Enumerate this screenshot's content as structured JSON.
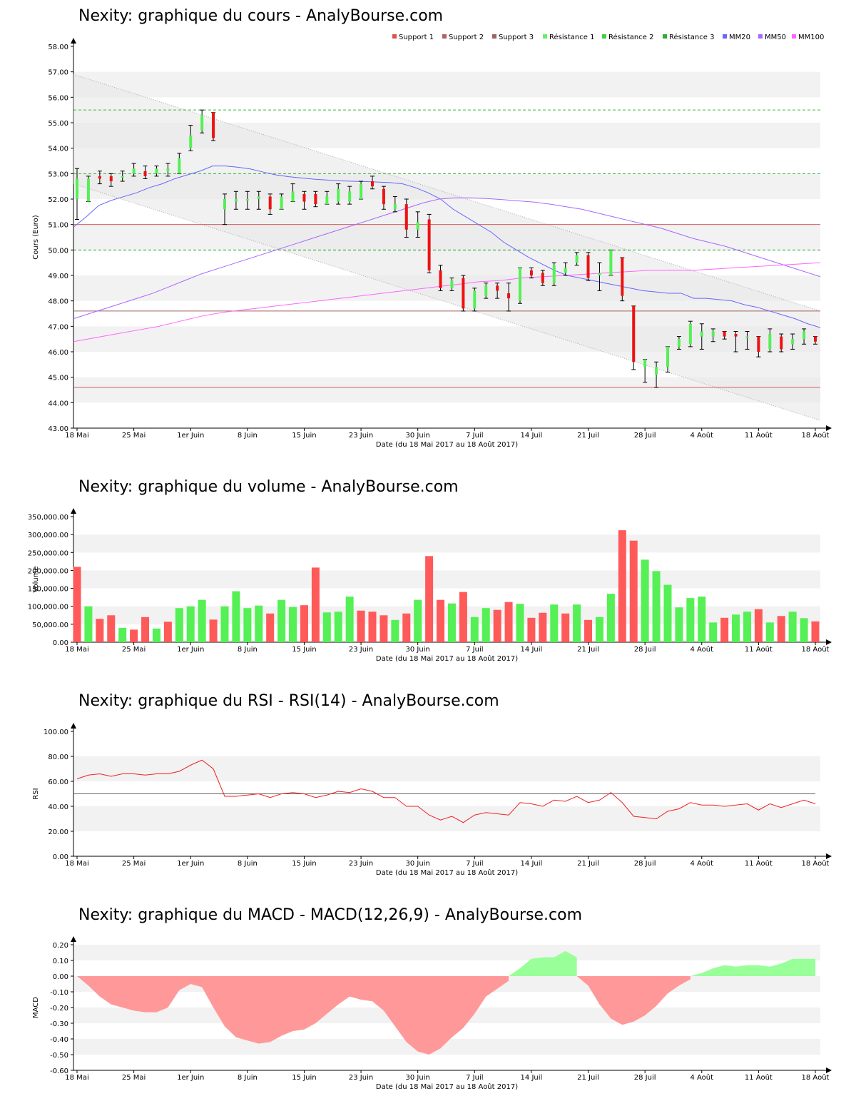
{
  "chart_data": [
    {
      "type": "candlestick",
      "title": "Nexity: graphique du cours - AnalyBourse.com",
      "xlabel": "Date (du 18 Mai 2017 au 18 Août 2017)",
      "ylabel": "Cours (Euro)",
      "ylim": [
        43,
        58
      ],
      "yticks": [
        "43.00",
        "44.00",
        "45.00",
        "46.00",
        "47.00",
        "48.00",
        "49.00",
        "50.00",
        "51.00",
        "52.00",
        "53.00",
        "54.00",
        "55.00",
        "56.00",
        "57.00",
        "58.00"
      ],
      "xticks": [
        {
          "i": 0,
          "label": "18 Mai"
        },
        {
          "i": 5,
          "label": "25 Mai"
        },
        {
          "i": 10,
          "label": "1er Juin"
        },
        {
          "i": 15,
          "label": "8 Juin"
        },
        {
          "i": 20,
          "label": "15 Juin"
        },
        {
          "i": 25,
          "label": "23 Juin"
        },
        {
          "i": 30,
          "label": "30 Juin"
        },
        {
          "i": 35,
          "label": "7 Juil"
        },
        {
          "i": 40,
          "label": "14 Juil"
        },
        {
          "i": 45,
          "label": "21 Juil"
        },
        {
          "i": 50,
          "label": "28 Juil"
        },
        {
          "i": 55,
          "label": "4 Août"
        },
        {
          "i": 60,
          "label": "11 Août"
        },
        {
          "i": 65,
          "label": "18 Août"
        }
      ],
      "legend": [
        "Support 1",
        "Support 2",
        "Support 3",
        "Résistance 1",
        "Résistance 2",
        "Résistance 3",
        "MM20",
        "MM50",
        "MM100"
      ],
      "legend_colors": [
        "#e05050",
        "#b06060",
        "#a06060",
        "#66ee66",
        "#44cc44",
        "#33aa33",
        "#6666ff",
        "#aa66ff",
        "#ff66ff"
      ],
      "legend_placement": "top-right",
      "levels": {
        "support_1": 44.6,
        "support_2": 47.6,
        "support_3": 51.0,
        "resistance_1": 55.5,
        "resistance_2": 53.0,
        "resistance_3": 50.0
      },
      "candles": [
        [
          52.0,
          52.8,
          53.2,
          51.2
        ],
        [
          51.9,
          52.8,
          52.9,
          51.9
        ],
        [
          52.9,
          52.8,
          53.1,
          52.6
        ],
        [
          52.9,
          52.7,
          53.0,
          52.5
        ],
        [
          52.9,
          52.9,
          53.1,
          52.7
        ],
        [
          53.0,
          53.2,
          53.4,
          52.9
        ],
        [
          53.1,
          52.9,
          53.3,
          52.8
        ],
        [
          53.0,
          53.2,
          53.3,
          52.9
        ],
        [
          53.1,
          53.2,
          53.4,
          52.9
        ],
        [
          53.0,
          53.6,
          53.8,
          53.0
        ],
        [
          54.0,
          54.5,
          54.9,
          53.9
        ],
        [
          54.7,
          55.3,
          55.5,
          54.6
        ],
        [
          55.4,
          54.4,
          55.4,
          54.3
        ],
        [
          51.6,
          52.0,
          52.2,
          51.0
        ],
        [
          51.9,
          52.0,
          52.3,
          51.6
        ],
        [
          52.0,
          52.0,
          52.3,
          51.6
        ],
        [
          52.0,
          52.1,
          52.3,
          51.6
        ],
        [
          52.1,
          51.6,
          52.2,
          51.4
        ],
        [
          51.6,
          52.1,
          52.2,
          51.6
        ],
        [
          51.9,
          52.3,
          52.6,
          51.9
        ],
        [
          52.2,
          51.9,
          52.3,
          51.6
        ],
        [
          52.2,
          51.8,
          52.3,
          51.7
        ],
        [
          51.8,
          52.1,
          52.3,
          51.8
        ],
        [
          51.9,
          52.4,
          52.6,
          51.8
        ],
        [
          51.9,
          52.3,
          52.5,
          51.8
        ],
        [
          52.0,
          52.6,
          52.7,
          52.0
        ],
        [
          52.7,
          52.5,
          52.9,
          52.4
        ],
        [
          52.4,
          51.8,
          52.5,
          51.6
        ],
        [
          51.6,
          51.8,
          52.1,
          51.5
        ],
        [
          51.8,
          50.8,
          52.0,
          50.5
        ],
        [
          50.8,
          51.1,
          51.5,
          50.5
        ],
        [
          51.2,
          49.2,
          51.4,
          49.1
        ],
        [
          49.2,
          48.5,
          49.4,
          48.4
        ],
        [
          48.5,
          48.8,
          48.9,
          48.4
        ],
        [
          48.9,
          47.7,
          49.0,
          47.6
        ],
        [
          47.7,
          48.4,
          48.5,
          47.6
        ],
        [
          48.2,
          48.6,
          48.7,
          48.1
        ],
        [
          48.6,
          48.4,
          48.7,
          48.1
        ],
        [
          48.3,
          48.1,
          48.7,
          47.6
        ],
        [
          48.0,
          49.3,
          49.3,
          47.9
        ],
        [
          49.2,
          49.0,
          49.3,
          48.9
        ],
        [
          49.1,
          48.7,
          49.2,
          48.6
        ],
        [
          48.7,
          49.4,
          49.5,
          48.6
        ],
        [
          49.1,
          49.3,
          49.5,
          49.0
        ],
        [
          49.5,
          49.8,
          49.9,
          49.4
        ],
        [
          49.8,
          48.9,
          49.9,
          48.8
        ],
        [
          49.0,
          49.1,
          49.5,
          48.4
        ],
        [
          49.0,
          50.0,
          50.0,
          49.0
        ],
        [
          49.7,
          48.2,
          49.7,
          48.0
        ],
        [
          47.8,
          45.6,
          47.8,
          45.3
        ],
        [
          45.4,
          45.7,
          45.7,
          44.8
        ],
        [
          45.1,
          45.4,
          45.6,
          44.6
        ],
        [
          45.4,
          46.2,
          46.2,
          45.2
        ],
        [
          46.2,
          46.5,
          46.6,
          46.1
        ],
        [
          46.3,
          47.1,
          47.2,
          46.2
        ],
        [
          46.6,
          46.8,
          47.1,
          46.1
        ],
        [
          46.6,
          46.8,
          46.9,
          46.4
        ],
        [
          46.8,
          46.6,
          46.8,
          46.5
        ],
        [
          46.7,
          46.6,
          46.8,
          46.0
        ],
        [
          46.6,
          46.6,
          46.8,
          46.1
        ],
        [
          46.6,
          46.0,
          46.6,
          45.8
        ],
        [
          46.1,
          46.7,
          46.9,
          46.0
        ],
        [
          46.6,
          46.1,
          46.7,
          46.0
        ],
        [
          46.3,
          46.5,
          46.7,
          46.1
        ],
        [
          46.5,
          46.8,
          46.9,
          46.3
        ],
        [
          46.6,
          46.4,
          46.6,
          46.3
        ]
      ],
      "series": [
        {
          "name": "MM20",
          "color": "#6666ff",
          "values": [
            50.9,
            51.3,
            51.75,
            51.95,
            52.1,
            52.25,
            52.45,
            52.6,
            52.8,
            52.95,
            53.1,
            53.3,
            53.3,
            53.25,
            53.18,
            53.06,
            52.95,
            52.88,
            52.83,
            52.78,
            52.75,
            52.72,
            52.7,
            52.69,
            52.67,
            52.65,
            52.6,
            52.45,
            52.25,
            52.0,
            51.6,
            51.3,
            51.0,
            50.7,
            50.3,
            50.0,
            49.7,
            49.45,
            49.2,
            49.0,
            48.9,
            48.8,
            48.7,
            48.6,
            48.5,
            48.4,
            48.35,
            48.3,
            48.3,
            48.1,
            48.1,
            48.05,
            48.0,
            47.85,
            47.75,
            47.6,
            47.45,
            47.3,
            47.1,
            46.95
          ]
        },
        {
          "name": "MM50",
          "color": "#aa66ff",
          "values": [
            47.3,
            47.5,
            47.7,
            47.9,
            48.1,
            48.3,
            48.55,
            48.8,
            49.05,
            49.25,
            49.45,
            49.65,
            49.85,
            50.05,
            50.25,
            50.45,
            50.65,
            50.85,
            51.05,
            51.25,
            51.45,
            51.65,
            51.85,
            52.0,
            52.05,
            52.05,
            52.02,
            51.98,
            51.93,
            51.88,
            51.8,
            51.7,
            51.6,
            51.45,
            51.3,
            51.15,
            51.0,
            50.85,
            50.65,
            50.45,
            50.3,
            50.15,
            49.95,
            49.75,
            49.55,
            49.35,
            49.15,
            48.95
          ]
        },
        {
          "name": "MM100",
          "color": "#ff66ff",
          "values": [
            46.4,
            46.55,
            46.7,
            46.85,
            47.0,
            47.2,
            47.4,
            47.55,
            47.65,
            47.75,
            47.85,
            47.95,
            48.05,
            48.15,
            48.25,
            48.35,
            48.45,
            48.55,
            48.65,
            48.75,
            48.8,
            48.9,
            48.95,
            49.0,
            49.05,
            49.1,
            49.15,
            49.2,
            49.2,
            49.2,
            49.25,
            49.3,
            49.35,
            49.4,
            49.45,
            49.5
          ]
        }
      ]
    },
    {
      "type": "bar",
      "title": "Nexity: graphique du volume - AnalyBourse.com",
      "xlabel": "Date (du 18 Mai 2017 au 18 Août 2017)",
      "ylabel": "Volume",
      "ylim": [
        0,
        350000
      ],
      "yticks": [
        "0.00",
        "50,000.00",
        "100,000.00",
        "150,000.00",
        "200,000.00",
        "250,000.00",
        "300,000.00",
        "350,000.00"
      ],
      "values": [
        210000,
        100000,
        65000,
        75000,
        40000,
        35000,
        70000,
        38000,
        57000,
        95000,
        100000,
        118000,
        63000,
        100000,
        142000,
        95000,
        102000,
        80000,
        118000,
        98000,
        103000,
        208000,
        83000,
        85000,
        127000,
        88000,
        85000,
        75000,
        62000,
        80000,
        118000,
        240000,
        118000,
        108000,
        140000,
        70000,
        95000,
        90000,
        112000,
        107000,
        68000,
        82000,
        105000,
        80000,
        105000,
        62000,
        70000,
        135000,
        312000,
        283000,
        230000,
        198000,
        160000,
        97000,
        123000,
        127000,
        55000,
        68000,
        77000,
        85000,
        92000,
        55000,
        73000,
        85000,
        67000,
        58000
      ],
      "colors": [
        "r",
        "g",
        "r",
        "r",
        "g",
        "r",
        "r",
        "g",
        "r",
        "g",
        "g",
        "g",
        "r",
        "g",
        "g",
        "g",
        "g",
        "r",
        "g",
        "g",
        "r",
        "r",
        "g",
        "g",
        "g",
        "r",
        "r",
        "r",
        "g",
        "r",
        "g",
        "r",
        "r",
        "g",
        "r",
        "g",
        "g",
        "r",
        "r",
        "g",
        "r",
        "r",
        "g",
        "r",
        "g",
        "r",
        "g",
        "g",
        "r",
        "r",
        "g",
        "g",
        "g",
        "g",
        "g",
        "g",
        "g",
        "r",
        "g",
        "g",
        "r",
        "g",
        "r",
        "g",
        "g",
        "r"
      ]
    },
    {
      "type": "line",
      "title": "Nexity: graphique du RSI - RSI(14) - AnalyBourse.com",
      "xlabel": "Date (du 18 Mai 2017 au 18 Août 2017)",
      "ylabel": "RSI",
      "ylim": [
        0,
        100
      ],
      "yticks": [
        "0.00",
        "20.00",
        "40.00",
        "60.00",
        "80.00",
        "100.00"
      ],
      "reference": 50,
      "values": [
        62,
        65,
        66,
        64,
        66,
        66,
        65,
        66,
        66,
        68,
        73,
        77,
        70,
        48,
        48,
        49,
        50,
        47,
        50,
        51,
        50,
        47,
        49,
        52,
        51,
        54,
        52,
        47,
        47,
        40,
        40,
        33,
        29,
        32,
        27,
        33,
        35,
        34,
        33,
        43,
        42,
        40,
        45,
        44,
        48,
        43,
        45,
        51,
        43,
        32,
        31,
        30,
        36,
        38,
        43,
        41,
        41,
        40,
        41,
        42,
        37,
        42,
        39,
        42,
        45,
        42
      ]
    },
    {
      "type": "area",
      "title": "Nexity: graphique du MACD - MACD(12,26,9) - AnalyBourse.com",
      "xlabel": "Date (du 18 Mai 2017 au 18 Août 2017)",
      "ylabel": "MACD",
      "ylim": [
        -0.6,
        0.2
      ],
      "yticks": [
        "-0.60",
        "-0.50",
        "-0.40",
        "-0.30",
        "-0.20",
        "-0.10",
        "0.00",
        "0.10",
        "0.20"
      ],
      "values": [
        0.0,
        -0.06,
        -0.13,
        -0.18,
        -0.2,
        -0.22,
        -0.23,
        -0.23,
        -0.2,
        -0.09,
        -0.05,
        -0.07,
        -0.2,
        -0.32,
        -0.39,
        -0.41,
        -0.43,
        -0.42,
        -0.38,
        -0.35,
        -0.34,
        -0.3,
        -0.24,
        -0.18,
        -0.13,
        -0.15,
        -0.16,
        -0.22,
        -0.32,
        -0.42,
        -0.48,
        -0.5,
        -0.46,
        -0.39,
        -0.33,
        -0.24,
        -0.13,
        -0.08,
        -0.03,
        0.05,
        0.11,
        0.12,
        0.12,
        0.16,
        0.12,
        -0.06,
        -0.18,
        -0.27,
        -0.31,
        -0.29,
        -0.25,
        -0.19,
        -0.11,
        -0.06,
        -0.02,
        0.02,
        0.05,
        0.07,
        0.06,
        0.07,
        0.07,
        0.06,
        0.08,
        0.11,
        0.11,
        0.11
      ]
    }
  ]
}
